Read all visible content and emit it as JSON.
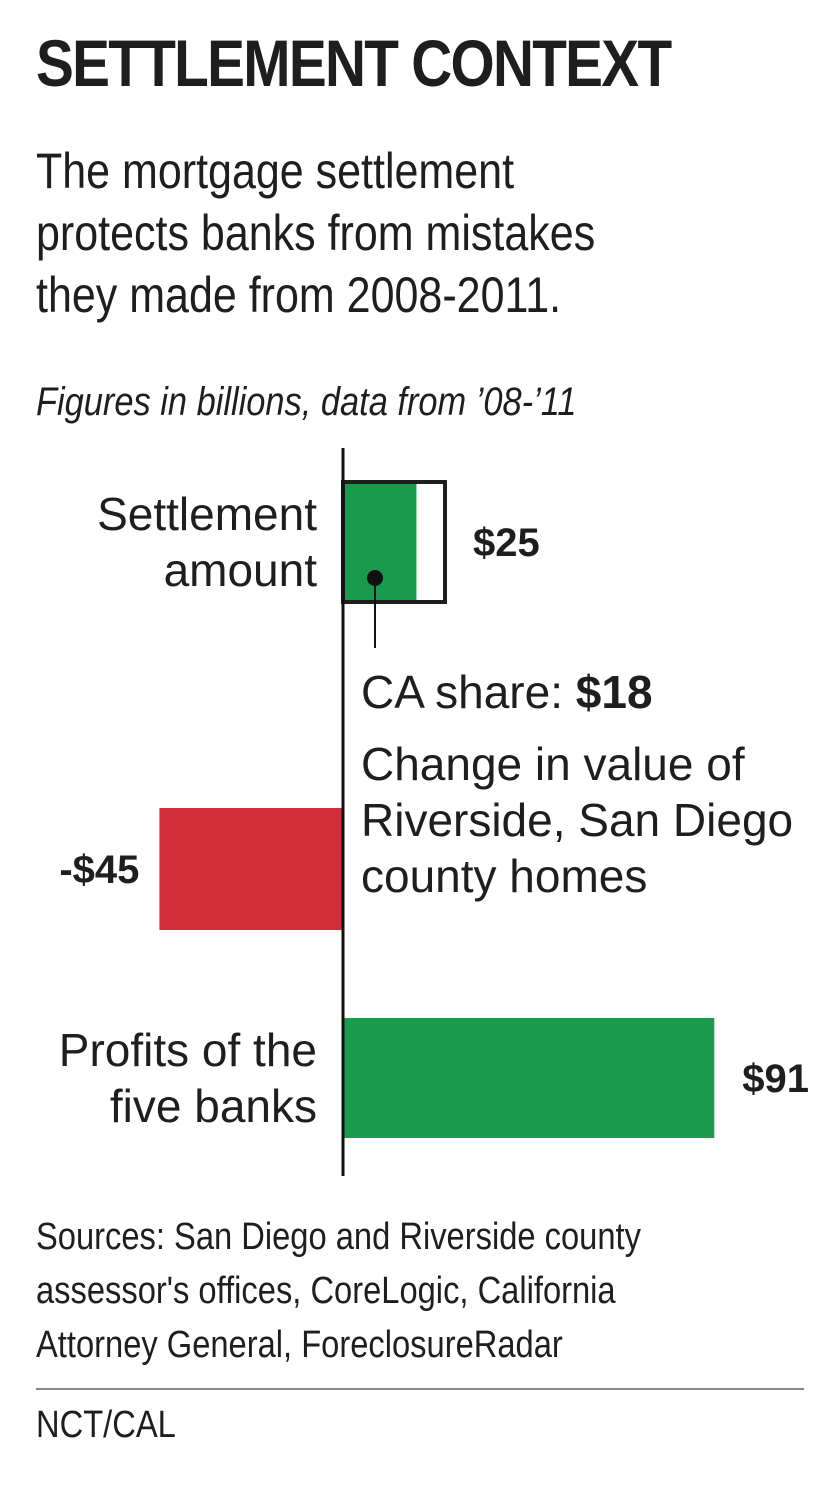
{
  "title": "SETTLEMENT CONTEXT",
  "subtitle_lines": [
    "The mortgage settlement",
    "protects banks from mistakes",
    "they made from 2008-2011."
  ],
  "units_note": "Figures in billions, data from ’08-’11",
  "colors": {
    "positive": "#1a9a4c",
    "negative": "#d12e3a",
    "ca_share_fill": "#1a9a4c",
    "outline": "#1e1e1e"
  },
  "chart_data": {
    "type": "bar",
    "orientation": "horizontal",
    "categories": [
      [
        "Settlement",
        "amount"
      ],
      [
        "Change in value of",
        "Riverside, San Diego",
        "county homes"
      ],
      [
        "Profits of the",
        "five banks"
      ]
    ],
    "values": [
      25,
      -45,
      91
    ],
    "value_labels": [
      "$25",
      "-$45",
      "$91"
    ],
    "annotation": {
      "category_index": 0,
      "label_prefix": "CA share: ",
      "label_value": "$18",
      "value": 18
    },
    "xlim": [
      -45,
      91
    ],
    "grid": false
  },
  "sources_lines": [
    "Sources:  San Diego and Riverside county",
    "assessor's offices, CoreLogic, California",
    "Attorney General, ForeclosureRadar"
  ],
  "credit": "NCT/CAL"
}
